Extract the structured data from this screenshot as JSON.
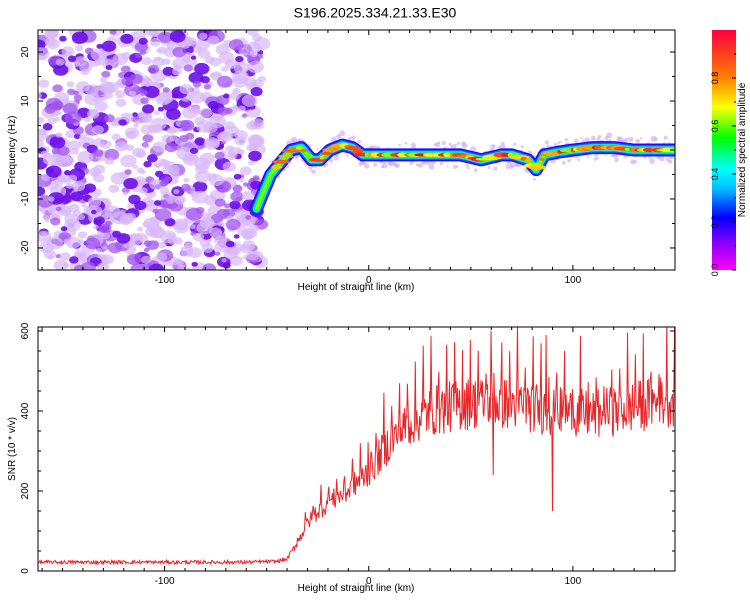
{
  "title": "S196.2025.334.21.33.E30",
  "chart_data": [
    {
      "type": "heatmap",
      "name": "spectrogram",
      "xlabel": "Height of straight line (km)",
      "ylabel": "Frequency (Hz)",
      "xlim": [
        -162,
        150
      ],
      "ylim": [
        -24.5,
        24.5
      ],
      "xticks": [
        -100,
        0,
        100
      ],
      "yticks": [
        -20,
        -10,
        0,
        10,
        20
      ],
      "noise_region_x": [
        -162,
        -52
      ],
      "ridge": {
        "x": [
          -55,
          -48,
          -42,
          -38,
          -33,
          -28,
          -24,
          -19,
          -13,
          -8,
          -3,
          5,
          15,
          25,
          35,
          45,
          55,
          60,
          65,
          70,
          74,
          78,
          82,
          86,
          92,
          100,
          110,
          120,
          130,
          140,
          150
        ],
        "y": [
          -12,
          -5,
          -2,
          0,
          0.5,
          -2,
          -2,
          0,
          1,
          0.5,
          -1,
          -1,
          -1,
          -1,
          -1,
          -1,
          -2,
          -1.5,
          -1,
          -1,
          -1.5,
          -2,
          -4,
          -1,
          -0.5,
          0,
          0.5,
          0.5,
          0,
          0,
          0
        ]
      },
      "colorbar": {
        "label": "Normalized spectral amplitude",
        "ticks": [
          "0.0",
          "0.2",
          "0.4",
          "0.6",
          "0.8"
        ],
        "range": [
          0,
          1
        ]
      }
    },
    {
      "type": "line",
      "name": "snr",
      "xlabel": "Height of straight line (km)",
      "ylabel": "SNR (10 * v/v)",
      "xlim": [
        -162,
        150
      ],
      "ylim": [
        0,
        610
      ],
      "xticks": [
        -100,
        0,
        100
      ],
      "yticks": [
        0,
        200,
        400,
        600
      ],
      "color": "#e8262a",
      "trend": {
        "x": [
          -162,
          -60,
          -45,
          -40,
          -35,
          -30,
          -25,
          -20,
          -10,
          0,
          10,
          20,
          30,
          50,
          70,
          90,
          110,
          130,
          150
        ],
        "y": [
          22,
          22,
          24,
          30,
          70,
          120,
          150,
          170,
          200,
          250,
          320,
          370,
          400,
          420,
          420,
          400,
          390,
          410,
          430
        ]
      },
      "spikes": [
        {
          "x": 60,
          "y": 600
        },
        {
          "x": 87,
          "y": 590
        },
        {
          "x": 90,
          "y": 150
        },
        {
          "x": 61,
          "y": 240
        }
      ]
    }
  ]
}
